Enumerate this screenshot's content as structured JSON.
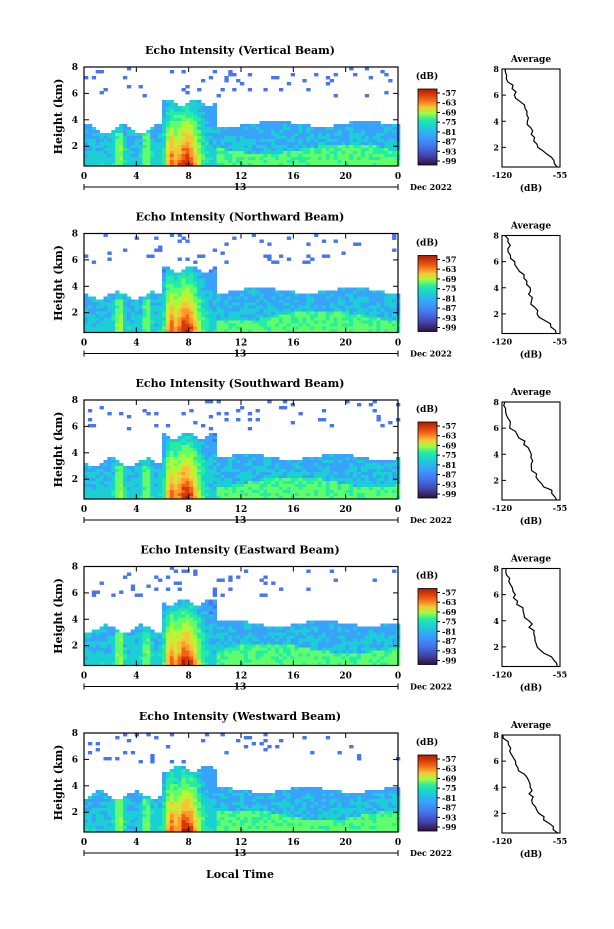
{
  "figure": {
    "xlabel": "Local Time",
    "x_ticks": [
      "0",
      "4",
      "8",
      "12",
      "16",
      "20",
      "0"
    ],
    "date_tick": "13",
    "date_suffix": "Dec 2022",
    "colorbar_unit": "(dB)",
    "colorbar_ticks": [
      "-57",
      "-63",
      "-69",
      "-75",
      "-81",
      "-87",
      "-93",
      "-99"
    ],
    "avg_title": "Average",
    "avg_xunit": "(dB)",
    "avg_xticks": [
      "-120",
      "-55"
    ],
    "height_label": "Height (km)",
    "height_ticks": [
      "2",
      "4",
      "6",
      "8"
    ]
  },
  "chart_data": [
    {
      "type": "heatmap",
      "title": "Echo Intensity (Vertical Beam)",
      "xlabel": "Local Time",
      "ylabel": "Height (km)",
      "xlim": [
        0,
        24
      ],
      "ylim": [
        0.5,
        8
      ],
      "zlim": [
        -99,
        -57
      ],
      "zunit": "dB",
      "average_profile": {
        "xlim": [
          -120,
          -55
        ],
        "height": [
          0.5,
          1,
          1.5,
          2,
          2.5,
          3,
          3.5,
          4,
          4.5,
          5,
          5.5,
          6,
          6.5,
          7,
          7.5,
          8
        ],
        "value": [
          -57,
          -63,
          -72,
          -80,
          -83,
          -86,
          -88,
          -90,
          -92,
          -94,
          -100,
          -104,
          -108,
          -112,
          -114,
          -116
        ]
      }
    },
    {
      "type": "heatmap",
      "title": "Echo Intensity (Northward Beam)",
      "xlabel": "Local Time",
      "ylabel": "Height (km)",
      "xlim": [
        0,
        24
      ],
      "ylim": [
        0.5,
        8
      ],
      "zlim": [
        -99,
        -57
      ],
      "zunit": "dB",
      "average_profile": {
        "xlim": [
          -120,
          -55
        ],
        "height": [
          0.5,
          1,
          1.5,
          2,
          2.5,
          3,
          3.5,
          4,
          4.5,
          5,
          5.5,
          6,
          6.5,
          7,
          7.5,
          8
        ],
        "value": [
          -58,
          -64,
          -73,
          -80,
          -84,
          -87,
          -88,
          -90,
          -93,
          -96,
          -101,
          -106,
          -110,
          -112,
          -115,
          -117
        ]
      }
    },
    {
      "type": "heatmap",
      "title": "Echo Intensity (Southward Beam)",
      "xlabel": "Local Time",
      "ylabel": "Height (km)",
      "xlim": [
        0,
        24
      ],
      "ylim": [
        0.5,
        8
      ],
      "zlim": [
        -99,
        -57
      ],
      "zunit": "dB",
      "average_profile": {
        "xlim": [
          -120,
          -55
        ],
        "height": [
          0.5,
          1,
          1.5,
          2,
          2.5,
          3,
          3.5,
          4,
          4.5,
          5,
          5.5,
          6,
          6.5,
          7,
          7.5,
          8
        ],
        "value": [
          -57,
          -62,
          -71,
          -79,
          -83,
          -86,
          -87,
          -89,
          -92,
          -95,
          -104,
          -110,
          -112,
          -114,
          -116,
          -118
        ]
      }
    },
    {
      "type": "heatmap",
      "title": "Echo Intensity (Eastward Beam)",
      "xlabel": "Local Time",
      "ylabel": "Height (km)",
      "xlim": [
        0,
        24
      ],
      "ylim": [
        0.5,
        8
      ],
      "zlim": [
        -99,
        -57
      ],
      "zunit": "dB",
      "average_profile": {
        "xlim": [
          -120,
          -55
        ],
        "height": [
          0.5,
          1,
          1.5,
          2,
          2.5,
          3,
          3.5,
          4,
          4.5,
          5,
          5.5,
          6,
          6.5,
          7,
          7.5,
          8
        ],
        "value": [
          -58,
          -63,
          -72,
          -80,
          -84,
          -86,
          -88,
          -90,
          -94,
          -98,
          -103,
          -107,
          -110,
          -113,
          -115,
          -117
        ]
      }
    },
    {
      "type": "heatmap",
      "title": "Echo Intensity (Westward Beam)",
      "xlabel": "Local Time",
      "ylabel": "Height (km)",
      "xlim": [
        0,
        24
      ],
      "ylim": [
        0.5,
        8
      ],
      "zlim": [
        -99,
        -57
      ],
      "zunit": "dB",
      "average_profile": {
        "xlim": [
          -120,
          -55
        ],
        "height": [
          0.5,
          1,
          1.5,
          2,
          2.5,
          3,
          3.5,
          4,
          4.5,
          5,
          5.5,
          6,
          6.5,
          7,
          7.5,
          8
        ],
        "value": [
          -57,
          -63,
          -72,
          -79,
          -83,
          -86,
          -88,
          -89,
          -92,
          -96,
          -102,
          -106,
          -110,
          -112,
          -115,
          -117
        ]
      }
    }
  ],
  "colors": {
    "colormap": [
      "#30123b",
      "#4145ab",
      "#4675ed",
      "#39a2fc",
      "#1bcfd4",
      "#24eca6",
      "#61fc6c",
      "#a4fc3b",
      "#d1e834",
      "#f3c63a",
      "#fe9b2d",
      "#f36315",
      "#d93806",
      "#b11901",
      "#7a0402"
    ],
    "line": "#000000"
  }
}
